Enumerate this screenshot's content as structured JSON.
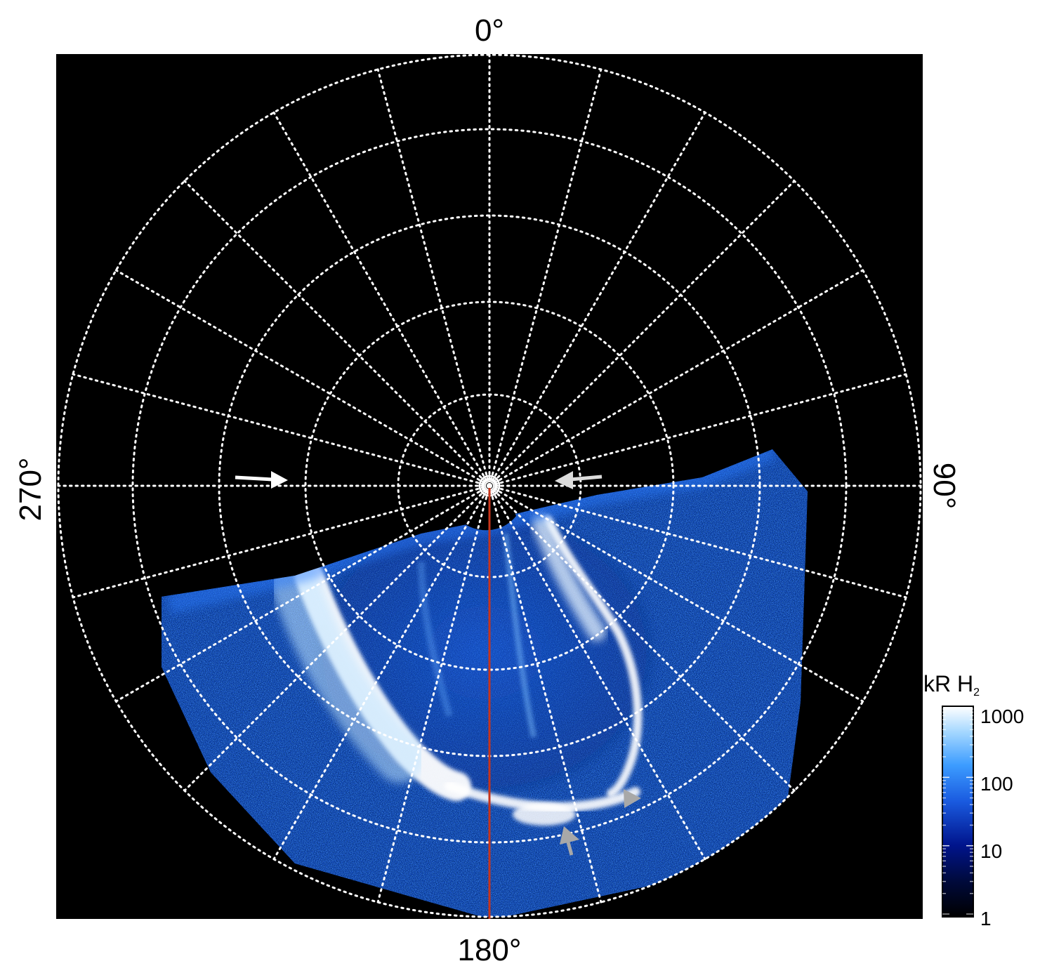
{
  "figure": {
    "direction_labels": {
      "top": "0°",
      "bottom": "180°",
      "left": "270°",
      "right": "90°"
    },
    "colorbar": {
      "title": "kR H",
      "title_subscript": "2",
      "tick_labels": [
        "1000",
        "100",
        "10",
        "1"
      ],
      "scale": "log",
      "colors": [
        "#000000",
        "#000a3c",
        "#00148c",
        "#1a5be0",
        "#3c9cff",
        "#a6d8ff",
        "#ffffff"
      ]
    },
    "colors": {
      "background": "#000000",
      "grid": "#ffffff",
      "meridian_line": "#c8341a",
      "aurora_bright": "#ffffff",
      "aurora_mid": "#3a8cff",
      "aurora_dark": "#0a2f8a",
      "arrow_white": "#ffffff",
      "arrow_gray": "#a8a8a8"
    },
    "arrows": [
      {
        "name": "white-arrow-left",
        "color": "white"
      },
      {
        "name": "white-arrow-right",
        "color": "light-gray"
      },
      {
        "name": "gray-arrow-bottom",
        "color": "gray"
      },
      {
        "name": "gray-arrow-bottom-right",
        "color": "gray"
      }
    ]
  }
}
